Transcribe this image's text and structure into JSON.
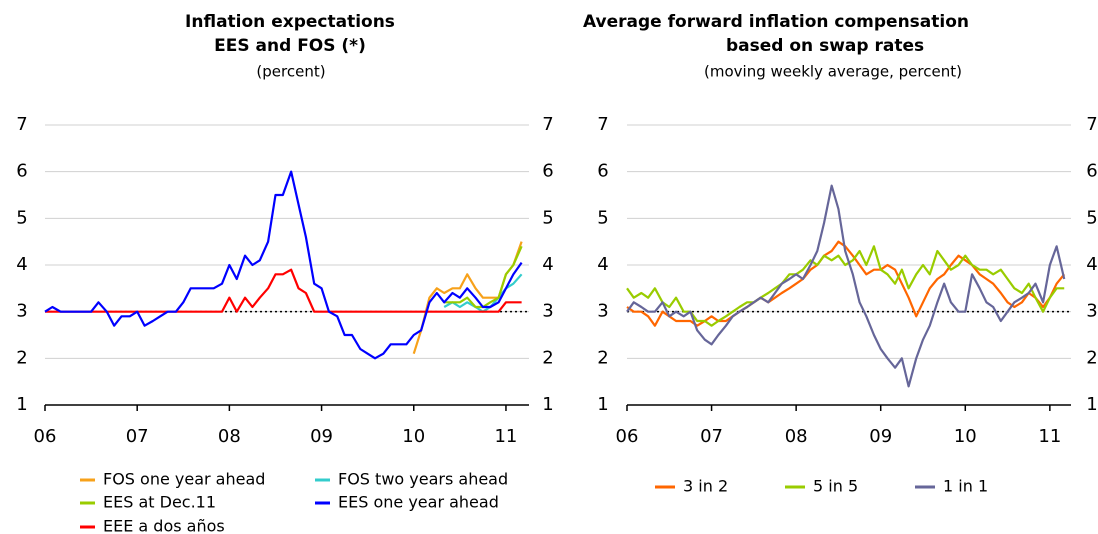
{
  "chart_data": [
    {
      "type": "line",
      "title": [
        "Inflation expectations",
        "EES and FOS (*)"
      ],
      "subtitle": "(percent)",
      "x": [
        2006,
        2006.08,
        2006.17,
        2006.25,
        2006.33,
        2006.42,
        2006.5,
        2006.58,
        2006.67,
        2006.75,
        2006.83,
        2006.92,
        2007,
        2007.08,
        2007.17,
        2007.25,
        2007.33,
        2007.42,
        2007.5,
        2007.58,
        2007.67,
        2007.75,
        2007.83,
        2007.92,
        2008,
        2008.08,
        2008.17,
        2008.25,
        2008.33,
        2008.42,
        2008.5,
        2008.58,
        2008.67,
        2008.75,
        2008.83,
        2008.92,
        2009,
        2009.08,
        2009.17,
        2009.25,
        2009.33,
        2009.42,
        2009.5,
        2009.58,
        2009.67,
        2009.75,
        2009.83,
        2009.92,
        2010,
        2010.08,
        2010.17,
        2010.25,
        2010.33,
        2010.42,
        2010.5,
        2010.58,
        2010.67,
        2010.75,
        2010.83,
        2010.92,
        2011,
        2011.08,
        2011.17
      ],
      "series": [
        {
          "name": "FOS one year ahead",
          "color": "#f7a11a",
          "values": [
            null,
            null,
            null,
            null,
            null,
            null,
            null,
            null,
            null,
            null,
            null,
            null,
            null,
            null,
            null,
            null,
            null,
            null,
            null,
            null,
            null,
            null,
            null,
            null,
            null,
            null,
            null,
            null,
            null,
            null,
            null,
            null,
            null,
            null,
            null,
            null,
            null,
            null,
            null,
            null,
            null,
            null,
            null,
            null,
            null,
            null,
            null,
            null,
            2.1,
            2.6,
            3.3,
            3.5,
            3.4,
            3.5,
            3.5,
            3.8,
            3.5,
            3.3,
            3.3,
            3.3,
            3.8,
            4.0,
            4.5
          ]
        },
        {
          "name": "FOS two years ahead",
          "color": "#33cccc",
          "values": [
            null,
            null,
            null,
            null,
            null,
            null,
            null,
            null,
            null,
            null,
            null,
            null,
            null,
            null,
            null,
            null,
            null,
            null,
            null,
            null,
            null,
            null,
            null,
            null,
            null,
            null,
            null,
            null,
            null,
            null,
            null,
            null,
            null,
            null,
            null,
            null,
            null,
            null,
            null,
            null,
            null,
            null,
            null,
            null,
            null,
            null,
            null,
            null,
            null,
            null,
            null,
            null,
            3.1,
            3.2,
            3.1,
            3.2,
            3.1,
            3.0,
            3.1,
            3.3,
            3.5,
            3.6,
            3.8
          ]
        },
        {
          "name": "EES at Dec.11",
          "color": "#99cc00",
          "values": [
            null,
            null,
            null,
            null,
            null,
            null,
            null,
            null,
            null,
            null,
            null,
            null,
            null,
            null,
            null,
            null,
            null,
            null,
            null,
            null,
            null,
            null,
            null,
            null,
            null,
            null,
            null,
            null,
            null,
            null,
            null,
            null,
            null,
            null,
            null,
            null,
            null,
            null,
            null,
            null,
            null,
            null,
            null,
            null,
            null,
            null,
            null,
            null,
            null,
            null,
            null,
            null,
            3.2,
            3.2,
            3.2,
            3.3,
            3.1,
            3.1,
            3.2,
            3.3,
            3.8,
            4.0,
            4.4
          ]
        },
        {
          "name": "EEE a dos años",
          "color": "#ff0000",
          "values": [
            3.0,
            3.0,
            3.0,
            3.0,
            3.0,
            3.0,
            3.0,
            3.0,
            3.0,
            3.0,
            3.0,
            3.0,
            3.0,
            3.0,
            3.0,
            3.0,
            3.0,
            3.0,
            3.0,
            3.0,
            3.0,
            3.0,
            3.0,
            3.0,
            3.3,
            3.0,
            3.3,
            3.1,
            3.3,
            3.5,
            3.8,
            3.8,
            3.9,
            3.5,
            3.4,
            3.0,
            3.0,
            3.0,
            3.0,
            3.0,
            3.0,
            3.0,
            3.0,
            3.0,
            3.0,
            3.0,
            3.0,
            3.0,
            3.0,
            3.0,
            3.0,
            3.0,
            3.0,
            3.0,
            3.0,
            3.0,
            3.0,
            3.0,
            3.0,
            3.0,
            3.2,
            3.2,
            3.2
          ]
        },
        {
          "name": "EES one year ahead",
          "color": "#0000ff",
          "values": [
            3.0,
            3.1,
            3.0,
            3.0,
            3.0,
            3.0,
            3.0,
            3.2,
            3.0,
            2.7,
            2.9,
            2.9,
            3.0,
            2.7,
            2.8,
            2.9,
            3.0,
            3.0,
            3.2,
            3.5,
            3.5,
            3.5,
            3.5,
            3.6,
            4.0,
            3.7,
            4.2,
            4.0,
            4.1,
            4.5,
            5.5,
            5.5,
            6.0,
            5.3,
            4.6,
            3.6,
            3.5,
            3.0,
            2.9,
            2.5,
            2.5,
            2.2,
            2.1,
            2.0,
            2.1,
            2.3,
            2.3,
            2.3,
            2.5,
            2.6,
            3.2,
            3.4,
            3.2,
            3.4,
            3.3,
            3.5,
            3.3,
            3.1,
            3.1,
            3.2,
            3.5,
            3.8,
            4.05
          ]
        }
      ],
      "legend_order": [
        0,
        1,
        2,
        4,
        3
      ],
      "xlim": [
        2006,
        2011.25
      ],
      "xticks": [
        {
          "value": 2006,
          "label": "06"
        },
        {
          "value": 2007,
          "label": "07"
        },
        {
          "value": 2008,
          "label": "08"
        },
        {
          "value": 2009,
          "label": "09"
        },
        {
          "value": 2010,
          "label": "10"
        },
        {
          "value": 2011,
          "label": "11"
        }
      ],
      "ylim": [
        1,
        7
      ],
      "yticks": [
        1,
        2,
        3,
        4,
        5,
        6,
        7
      ],
      "y2lim": [
        1,
        7
      ],
      "y2ticks": [
        1,
        2,
        3,
        4,
        5,
        6,
        7
      ],
      "hline": 3,
      "grid": true
    },
    {
      "type": "line",
      "title": [
        "Average forward inflation compensation",
        "based on swap rates"
      ],
      "subtitle": "(moving weekly average, percent)",
      "x": [
        2006,
        2006.08,
        2006.17,
        2006.25,
        2006.33,
        2006.42,
        2006.5,
        2006.58,
        2006.67,
        2006.75,
        2006.83,
        2006.92,
        2007,
        2007.08,
        2007.17,
        2007.25,
        2007.33,
        2007.42,
        2007.5,
        2007.58,
        2007.67,
        2007.75,
        2007.83,
        2007.92,
        2008,
        2008.08,
        2008.17,
        2008.25,
        2008.33,
        2008.42,
        2008.5,
        2008.58,
        2008.67,
        2008.75,
        2008.83,
        2008.92,
        2009,
        2009.08,
        2009.17,
        2009.25,
        2009.33,
        2009.42,
        2009.5,
        2009.58,
        2009.67,
        2009.75,
        2009.83,
        2009.92,
        2010,
        2010.08,
        2010.17,
        2010.25,
        2010.33,
        2010.42,
        2010.5,
        2010.58,
        2010.67,
        2010.75,
        2010.83,
        2010.92,
        2011,
        2011.08,
        2011.17
      ],
      "series": [
        {
          "name": "3 in 2",
          "color": "#ff6600",
          "values": [
            3.1,
            3.0,
            3.0,
            2.9,
            2.7,
            3.0,
            2.9,
            2.8,
            2.8,
            2.8,
            2.7,
            2.8,
            2.9,
            2.8,
            2.8,
            2.9,
            3.0,
            3.1,
            3.2,
            3.3,
            3.2,
            3.3,
            3.4,
            3.5,
            3.6,
            3.7,
            3.9,
            4.0,
            4.2,
            4.3,
            4.5,
            4.4,
            4.2,
            4.0,
            3.8,
            3.9,
            3.9,
            4.0,
            3.9,
            3.6,
            3.3,
            2.9,
            3.2,
            3.5,
            3.7,
            3.8,
            4.0,
            4.2,
            4.1,
            4.0,
            3.8,
            3.7,
            3.6,
            3.4,
            3.2,
            3.1,
            3.2,
            3.4,
            3.3,
            3.1,
            3.3,
            3.6,
            3.8
          ]
        },
        {
          "name": "5 in 5",
          "color": "#99cc00",
          "values": [
            3.5,
            3.3,
            3.4,
            3.3,
            3.5,
            3.2,
            3.1,
            3.3,
            3.0,
            3.0,
            2.8,
            2.8,
            2.7,
            2.8,
            2.9,
            3.0,
            3.1,
            3.2,
            3.2,
            3.3,
            3.4,
            3.5,
            3.6,
            3.8,
            3.8,
            3.9,
            4.1,
            4.0,
            4.2,
            4.1,
            4.2,
            4.0,
            4.1,
            4.3,
            4.0,
            4.4,
            3.9,
            3.8,
            3.6,
            3.9,
            3.5,
            3.8,
            4.0,
            3.8,
            4.3,
            4.1,
            3.9,
            4.0,
            4.2,
            4.0,
            3.9,
            3.9,
            3.8,
            3.9,
            3.7,
            3.5,
            3.4,
            3.6,
            3.3,
            3.0,
            3.3,
            3.5,
            3.5
          ]
        },
        {
          "name": "1 in 1",
          "color": "#666699",
          "values": [
            3.0,
            3.2,
            3.1,
            3.0,
            3.0,
            3.2,
            2.9,
            3.0,
            2.9,
            3.0,
            2.6,
            2.4,
            2.3,
            2.5,
            2.7,
            2.9,
            3.0,
            3.1,
            3.2,
            3.3,
            3.2,
            3.4,
            3.6,
            3.7,
            3.8,
            3.7,
            4.0,
            4.3,
            4.9,
            5.7,
            5.2,
            4.3,
            3.8,
            3.2,
            2.9,
            2.5,
            2.2,
            2.0,
            1.8,
            2.0,
            1.4,
            2.0,
            2.4,
            2.7,
            3.2,
            3.6,
            3.2,
            3.0,
            3.0,
            3.8,
            3.5,
            3.2,
            3.1,
            2.8,
            3.0,
            3.2,
            3.3,
            3.4,
            3.6,
            3.2,
            4.0,
            4.4,
            3.7
          ]
        }
      ],
      "legend_order": [
        0,
        1,
        2
      ],
      "xlim": [
        2006,
        2011.25
      ],
      "xticks": [
        {
          "value": 2006,
          "label": "06"
        },
        {
          "value": 2007,
          "label": "07"
        },
        {
          "value": 2008,
          "label": "08"
        },
        {
          "value": 2009,
          "label": "09"
        },
        {
          "value": 2010,
          "label": "10"
        },
        {
          "value": 2011,
          "label": "11"
        }
      ],
      "ylim": [
        1,
        7
      ],
      "yticks": [
        1,
        2,
        3,
        4,
        5,
        6,
        7
      ],
      "y2lim": [
        1,
        7
      ],
      "y2ticks": [
        1,
        2,
        3,
        4,
        5,
        6,
        7
      ],
      "hline": 3,
      "grid": true
    }
  ]
}
